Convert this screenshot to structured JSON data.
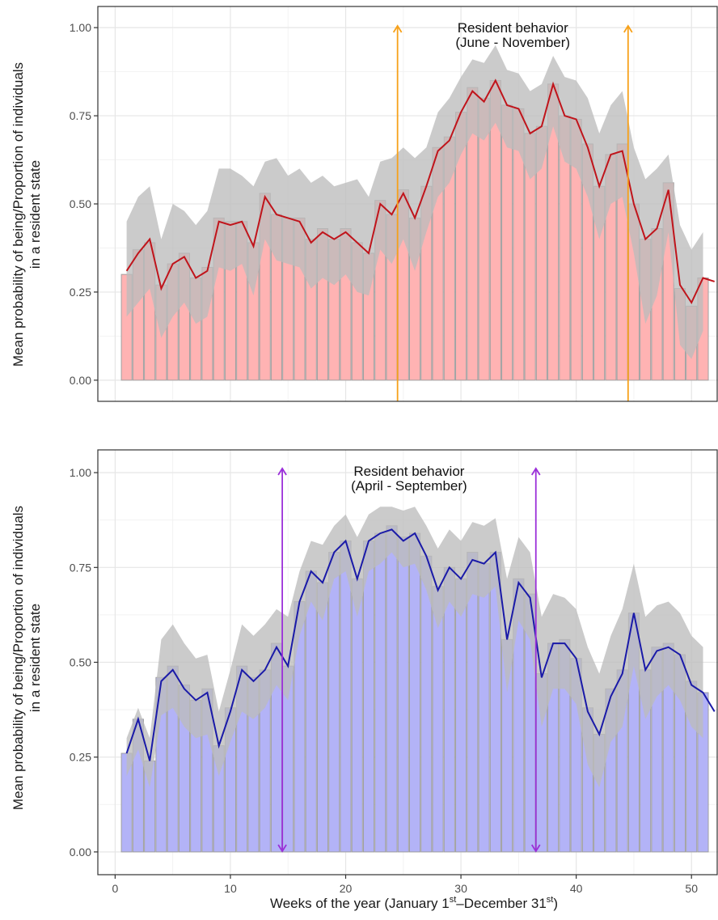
{
  "colors": {
    "panel_border": "#333333",
    "grid_major": "#e6e6e6",
    "grid_minor": "#f2f2f2",
    "ci_band": "#bdbdbd",
    "bar_outline": "#a0a0a0",
    "arrow_top": "#f7a11a",
    "arrow_bottom": "#9b30d9",
    "bar_top": "#ffb3b3",
    "line_top": "#c0141b",
    "bar_bottom": "#b3b3f7",
    "line_bottom": "#1a1aa8"
  },
  "x_axis": {
    "label_parts": [
      "Weeks of the year (January 1",
      "st",
      "–December 31",
      "st",
      ")"
    ]
  },
  "y_axis": {
    "label_line1": "Mean probability of being/Proportion of individuals",
    "label_line2": "in a resident state"
  },
  "chart_data": [
    {
      "type": "bar",
      "panel": "top",
      "title": "",
      "xlim": [
        -1.5,
        52.3
      ],
      "ylim": [
        -0.06,
        1.06
      ],
      "x_ticks": [
        0,
        10,
        20,
        30,
        40,
        50
      ],
      "y_ticks": [
        0,
        0.25,
        0.5,
        0.75,
        1.0
      ],
      "y_tick_labels": [
        "0.00",
        "0.25",
        "0.50",
        "0.75",
        "1.00"
      ],
      "grid": true,
      "weeks": [
        1,
        2,
        3,
        4,
        5,
        6,
        7,
        8,
        9,
        10,
        11,
        12,
        13,
        14,
        15,
        16,
        17,
        18,
        19,
        20,
        21,
        22,
        23,
        24,
        25,
        26,
        27,
        28,
        29,
        30,
        31,
        32,
        33,
        34,
        35,
        36,
        37,
        38,
        39,
        40,
        41,
        42,
        43,
        44,
        45,
        46,
        47,
        48,
        49,
        50,
        51
      ],
      "bars_proportion": [
        0.3,
        0.37,
        0.39,
        0.27,
        0.33,
        0.36,
        0.29,
        0.32,
        0.46,
        0.45,
        0.45,
        0.39,
        0.53,
        0.47,
        0.46,
        0.46,
        0.4,
        0.43,
        0.4,
        0.43,
        0.39,
        0.36,
        0.51,
        0.47,
        0.54,
        0.46,
        0.55,
        0.66,
        0.69,
        0.76,
        0.83,
        0.8,
        0.85,
        0.78,
        0.77,
        0.7,
        0.72,
        0.84,
        0.75,
        0.74,
        0.67,
        0.55,
        0.64,
        0.67,
        0.5,
        0.4,
        0.43,
        0.56,
        0.26,
        0.21,
        0.29
      ],
      "mean_probability": [
        0.31,
        0.36,
        0.4,
        0.26,
        0.33,
        0.35,
        0.29,
        0.31,
        0.45,
        0.44,
        0.45,
        0.38,
        0.52,
        0.47,
        0.46,
        0.45,
        0.39,
        0.42,
        0.4,
        0.42,
        0.39,
        0.36,
        0.5,
        0.47,
        0.53,
        0.46,
        0.55,
        0.65,
        0.68,
        0.76,
        0.82,
        0.79,
        0.85,
        0.78,
        0.77,
        0.7,
        0.72,
        0.84,
        0.75,
        0.74,
        0.66,
        0.55,
        0.64,
        0.65,
        0.5,
        0.4,
        0.43,
        0.54,
        0.27,
        0.22,
        0.29,
        0.28
      ],
      "mean_probability_x": [
        1,
        2,
        3,
        4,
        5,
        6,
        7,
        8,
        9,
        10,
        11,
        12,
        13,
        14,
        15,
        16,
        17,
        18,
        19,
        20,
        21,
        22,
        23,
        24,
        25,
        26,
        27,
        28,
        29,
        30,
        31,
        32,
        33,
        34,
        35,
        36,
        37,
        38,
        39,
        40,
        41,
        42,
        43,
        44,
        45,
        46,
        47,
        48,
        49,
        50,
        51,
        52
      ],
      "ci_upper": [
        0.45,
        0.52,
        0.55,
        0.4,
        0.5,
        0.48,
        0.44,
        0.48,
        0.6,
        0.6,
        0.58,
        0.55,
        0.62,
        0.63,
        0.58,
        0.6,
        0.56,
        0.58,
        0.55,
        0.56,
        0.57,
        0.52,
        0.62,
        0.63,
        0.66,
        0.63,
        0.66,
        0.76,
        0.8,
        0.86,
        0.91,
        0.9,
        0.95,
        0.88,
        0.87,
        0.82,
        0.84,
        0.92,
        0.86,
        0.85,
        0.8,
        0.7,
        0.78,
        0.82,
        0.66,
        0.57,
        0.6,
        0.64,
        0.44,
        0.37,
        0.42
      ],
      "ci_lower": [
        0.18,
        0.22,
        0.26,
        0.12,
        0.18,
        0.22,
        0.16,
        0.18,
        0.32,
        0.31,
        0.33,
        0.24,
        0.4,
        0.34,
        0.33,
        0.32,
        0.26,
        0.29,
        0.27,
        0.3,
        0.25,
        0.24,
        0.37,
        0.33,
        0.4,
        0.31,
        0.42,
        0.52,
        0.56,
        0.64,
        0.7,
        0.68,
        0.73,
        0.66,
        0.65,
        0.57,
        0.6,
        0.72,
        0.62,
        0.6,
        0.52,
        0.4,
        0.5,
        0.52,
        0.36,
        0.16,
        0.24,
        0.42,
        0.1,
        0.06,
        0.14
      ],
      "arrows_x": [
        24.5,
        44.5
      ],
      "annotation_line1": "Resident behavior",
      "annotation_line2": "(June - November)"
    },
    {
      "type": "bar",
      "panel": "bottom",
      "title": "",
      "xlim": [
        -1.5,
        52.3
      ],
      "ylim": [
        -0.06,
        1.06
      ],
      "x_ticks": [
        0,
        10,
        20,
        30,
        40,
        50
      ],
      "x_tick_labels": [
        "0",
        "10",
        "20",
        "30",
        "40",
        "50"
      ],
      "y_ticks": [
        0,
        0.25,
        0.5,
        0.75,
        1.0
      ],
      "y_tick_labels": [
        "0.00",
        "0.25",
        "0.50",
        "0.75",
        "1.00"
      ],
      "grid": true,
      "weeks": [
        1,
        2,
        3,
        4,
        5,
        6,
        7,
        8,
        9,
        10,
        11,
        12,
        13,
        14,
        15,
        16,
        17,
        18,
        19,
        20,
        21,
        22,
        23,
        24,
        25,
        26,
        27,
        28,
        29,
        30,
        31,
        32,
        33,
        34,
        35,
        36,
        37,
        38,
        39,
        40,
        41,
        42,
        43,
        44,
        45,
        46,
        47,
        48,
        49,
        50,
        51
      ],
      "bars_proportion": [
        0.26,
        0.35,
        0.24,
        0.46,
        0.49,
        0.44,
        0.4,
        0.43,
        0.28,
        0.38,
        0.49,
        0.46,
        0.48,
        0.55,
        0.49,
        0.66,
        0.74,
        0.71,
        0.79,
        0.82,
        0.72,
        0.82,
        0.84,
        0.86,
        0.83,
        0.84,
        0.78,
        0.7,
        0.75,
        0.72,
        0.79,
        0.76,
        0.79,
        0.56,
        0.72,
        0.68,
        0.47,
        0.55,
        0.56,
        0.51,
        0.38,
        0.31,
        0.43,
        0.48,
        0.63,
        0.48,
        0.54,
        0.55,
        0.52,
        0.45,
        0.42
      ],
      "mean_probability": [
        0.26,
        0.35,
        0.24,
        0.45,
        0.48,
        0.43,
        0.4,
        0.42,
        0.28,
        0.37,
        0.48,
        0.45,
        0.48,
        0.54,
        0.49,
        0.66,
        0.74,
        0.71,
        0.79,
        0.82,
        0.72,
        0.82,
        0.84,
        0.85,
        0.82,
        0.84,
        0.78,
        0.69,
        0.75,
        0.72,
        0.77,
        0.76,
        0.79,
        0.56,
        0.71,
        0.67,
        0.46,
        0.55,
        0.55,
        0.51,
        0.37,
        0.31,
        0.41,
        0.47,
        0.63,
        0.48,
        0.53,
        0.54,
        0.52,
        0.44,
        0.42,
        0.37
      ],
      "mean_probability_x": [
        1,
        2,
        3,
        4,
        5,
        6,
        7,
        8,
        9,
        10,
        11,
        12,
        13,
        14,
        15,
        16,
        17,
        18,
        19,
        20,
        21,
        22,
        23,
        24,
        25,
        26,
        27,
        28,
        29,
        30,
        31,
        32,
        33,
        34,
        35,
        36,
        37,
        38,
        39,
        40,
        41,
        42,
        43,
        44,
        45,
        46,
        47,
        48,
        49,
        50,
        51,
        52
      ],
      "ci_upper": [
        0.3,
        0.38,
        0.3,
        0.56,
        0.6,
        0.55,
        0.51,
        0.52,
        0.37,
        0.48,
        0.6,
        0.57,
        0.6,
        0.64,
        0.62,
        0.74,
        0.82,
        0.81,
        0.86,
        0.89,
        0.83,
        0.89,
        0.91,
        0.91,
        0.9,
        0.91,
        0.86,
        0.8,
        0.85,
        0.82,
        0.87,
        0.86,
        0.88,
        0.72,
        0.83,
        0.79,
        0.62,
        0.68,
        0.67,
        0.64,
        0.54,
        0.47,
        0.57,
        0.64,
        0.76,
        0.62,
        0.65,
        0.66,
        0.63,
        0.57,
        0.54
      ],
      "ci_lower": [
        0.2,
        0.27,
        0.17,
        0.36,
        0.38,
        0.33,
        0.3,
        0.31,
        0.2,
        0.29,
        0.37,
        0.35,
        0.38,
        0.44,
        0.4,
        0.57,
        0.66,
        0.61,
        0.72,
        0.74,
        0.62,
        0.74,
        0.76,
        0.79,
        0.75,
        0.76,
        0.69,
        0.59,
        0.66,
        0.62,
        0.68,
        0.67,
        0.7,
        0.42,
        0.61,
        0.56,
        0.33,
        0.43,
        0.43,
        0.39,
        0.23,
        0.17,
        0.29,
        0.33,
        0.49,
        0.35,
        0.41,
        0.44,
        0.4,
        0.33,
        0.3
      ],
      "arrows_x": [
        14.5,
        36.5
      ],
      "annotation_line1": "Resident behavior",
      "annotation_line2": "(April - September)"
    }
  ]
}
